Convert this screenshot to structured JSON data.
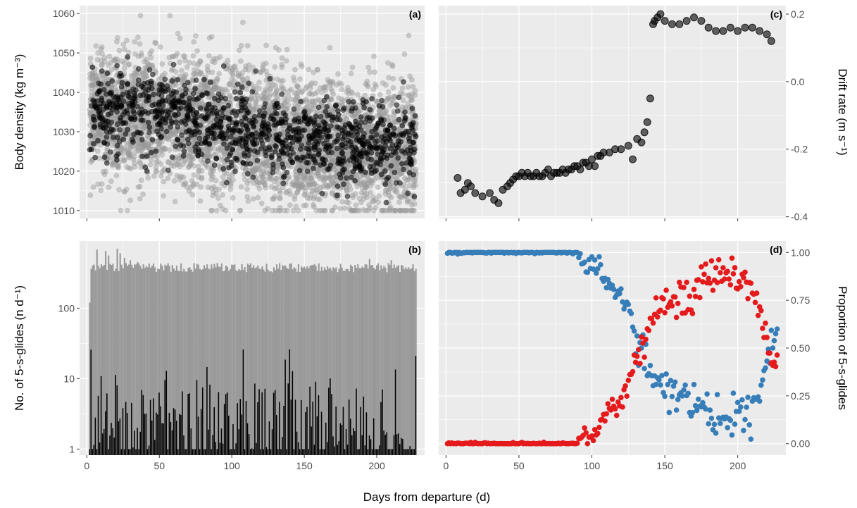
{
  "xlabel": "Days from departure (d)",
  "chart_data": [
    {
      "panel": "(a)",
      "type": "scatter",
      "ylabel": "Body density (kg m⁻³)",
      "xlim": [
        -5,
        233
      ],
      "ylim": [
        1008,
        1062
      ],
      "x_ticks": [
        0,
        50,
        100,
        150,
        200
      ],
      "y_ticks": [
        1010,
        1020,
        1030,
        1040,
        1050,
        1060
      ],
      "grid": true,
      "series": [
        {
          "color": "#999999",
          "opacity": 0.45,
          "trend": [
            [
              2,
              1035
            ],
            [
              50,
              1034
            ],
            [
              100,
              1031
            ],
            [
              150,
              1027
            ],
            [
              227,
              1026
            ]
          ],
          "spread": 8,
          "extremes": [
            1010,
            1060
          ]
        },
        {
          "color": "#000000",
          "opacity": 0.55,
          "trend": [
            [
              2,
              1034
            ],
            [
              40,
              1036
            ],
            [
              80,
              1033
            ],
            [
              120,
              1029
            ],
            [
              180,
              1027
            ],
            [
              227,
              1027
            ]
          ],
          "spread": 5,
          "extremes": [
            1012,
            1059
          ]
        }
      ]
    },
    {
      "panel": "(b)",
      "type": "bar",
      "ylabel": "No. of 5-s-glides (n  d⁻¹)",
      "yscale": "log",
      "xlim": [
        -5,
        233
      ],
      "ylim": [
        0.82,
        900
      ],
      "x_ticks": [
        0,
        50,
        100,
        150,
        200
      ],
      "x_ticklabels": [
        "0",
        "50",
        "100",
        "150",
        "200"
      ],
      "y_ticks": [
        1,
        10,
        100
      ],
      "y_ticklabels": [
        "1",
        "10",
        "100"
      ],
      "grid": true,
      "series": [
        {
          "color": "#999999",
          "x_range": [
            2,
            227
          ],
          "typical": 380,
          "first_day_value": 120,
          "peaks": [
            [
              7,
              680
            ],
            [
              13,
              650
            ],
            [
              15,
              560
            ],
            [
              21,
              700
            ],
            [
              23,
              600
            ],
            [
              26,
              520
            ],
            [
              30,
              480
            ],
            [
              35,
              450
            ],
            [
              195,
              500
            ],
            [
              210,
              480
            ],
            [
              225,
              420
            ]
          ]
        },
        {
          "color": "#000000",
          "x_range": [
            2,
            227
          ],
          "typical": 2.5,
          "max": 26,
          "first_day_value": 21
        }
      ]
    },
    {
      "panel": "(c)",
      "type": "scatter",
      "ylabel": "Drift rate (m s⁻¹)",
      "xlim": [
        -5,
        233
      ],
      "ylim": [
        -0.405,
        0.225
      ],
      "x_ticks": [
        0,
        50,
        100,
        150,
        200
      ],
      "y_ticks": [
        -0.4,
        -0.2,
        0.0,
        0.2
      ],
      "y_ticklabels": [
        "-0.4",
        "-0.2",
        "0.0",
        "0.2"
      ],
      "grid": true,
      "series": [
        {
          "color": "#000000",
          "opacity": 0.6,
          "x": [
            8,
            10,
            13,
            15,
            17,
            20,
            25,
            30,
            33,
            36,
            39,
            42,
            44,
            46,
            48,
            50,
            52,
            54,
            56,
            58,
            60,
            62,
            64,
            66,
            68,
            70,
            72,
            74,
            76,
            78,
            80,
            82,
            84,
            86,
            88,
            90,
            92,
            94,
            96,
            98,
            100,
            102,
            104,
            106,
            108,
            112,
            116,
            120,
            125,
            128,
            131,
            134,
            136,
            138,
            140,
            142,
            143,
            145,
            147,
            150,
            155,
            160,
            165,
            170,
            175,
            180,
            185,
            190,
            195,
            200,
            205,
            210,
            215,
            220,
            223
          ],
          "y": [
            -0.285,
            -0.33,
            -0.32,
            -0.3,
            -0.31,
            -0.33,
            -0.34,
            -0.33,
            -0.35,
            -0.36,
            -0.32,
            -0.31,
            -0.3,
            -0.29,
            -0.28,
            -0.28,
            -0.27,
            -0.28,
            -0.27,
            -0.28,
            -0.28,
            -0.27,
            -0.28,
            -0.28,
            -0.27,
            -0.26,
            -0.28,
            -0.27,
            -0.27,
            -0.27,
            -0.26,
            -0.27,
            -0.26,
            -0.26,
            -0.25,
            -0.25,
            -0.26,
            -0.24,
            -0.24,
            -0.25,
            -0.23,
            -0.25,
            -0.22,
            -0.22,
            -0.21,
            -0.21,
            -0.2,
            -0.2,
            -0.19,
            -0.23,
            -0.17,
            -0.18,
            -0.15,
            -0.12,
            -0.05,
            0.17,
            0.18,
            0.19,
            0.2,
            0.18,
            0.17,
            0.17,
            0.18,
            0.19,
            0.18,
            0.16,
            0.15,
            0.15,
            0.16,
            0.15,
            0.16,
            0.16,
            0.15,
            0.14,
            0.12
          ]
        }
      ]
    },
    {
      "panel": "(d)",
      "type": "scatter",
      "ylabel": "Proportion of 5-s-glides",
      "xlim": [
        -5,
        233
      ],
      "ylim": [
        -0.06,
        1.06
      ],
      "x_ticks": [
        0,
        50,
        100,
        150,
        200
      ],
      "x_ticklabels": [
        "0",
        "50",
        "100",
        "150",
        "200"
      ],
      "y_ticks": [
        0,
        0.25,
        0.5,
        0.75,
        1
      ],
      "y_ticklabels": [
        "0.00",
        "0.25",
        "0.50",
        "0.75",
        "1.00"
      ],
      "grid": true,
      "series": [
        {
          "color": "#377EB8",
          "trend": [
            [
              0,
              1.0
            ],
            [
              90,
              1.0
            ],
            [
              95,
              0.98
            ],
            [
              100,
              0.95
            ],
            [
              105,
              0.9
            ],
            [
              110,
              0.85
            ],
            [
              115,
              0.82
            ],
            [
              120,
              0.75
            ],
            [
              125,
              0.7
            ],
            [
              130,
              0.55
            ],
            [
              135,
              0.5
            ],
            [
              140,
              0.4
            ],
            [
              145,
              0.35
            ],
            [
              150,
              0.3
            ],
            [
              160,
              0.25
            ],
            [
              170,
              0.2
            ],
            [
              180,
              0.15
            ],
            [
              190,
              0.14
            ],
            [
              200,
              0.13
            ],
            [
              205,
              0.15
            ],
            [
              210,
              0.2
            ],
            [
              215,
              0.3
            ],
            [
              220,
              0.45
            ],
            [
              225,
              0.55
            ]
          ]
        },
        {
          "color": "#E41A1C",
          "trend": [
            [
              0,
              0.0
            ],
            [
              90,
              0.0
            ],
            [
              95,
              0.02
            ],
            [
              100,
              0.05
            ],
            [
              105,
              0.1
            ],
            [
              110,
              0.15
            ],
            [
              115,
              0.2
            ],
            [
              120,
              0.22
            ],
            [
              125,
              0.3
            ],
            [
              130,
              0.45
            ],
            [
              135,
              0.5
            ],
            [
              140,
              0.6
            ],
            [
              145,
              0.65
            ],
            [
              150,
              0.7
            ],
            [
              160,
              0.75
            ],
            [
              170,
              0.8
            ],
            [
              180,
              0.85
            ],
            [
              190,
              0.86
            ],
            [
              200,
              0.87
            ],
            [
              205,
              0.85
            ],
            [
              210,
              0.8
            ],
            [
              215,
              0.7
            ],
            [
              220,
              0.55
            ],
            [
              225,
              0.45
            ]
          ]
        }
      ]
    }
  ]
}
